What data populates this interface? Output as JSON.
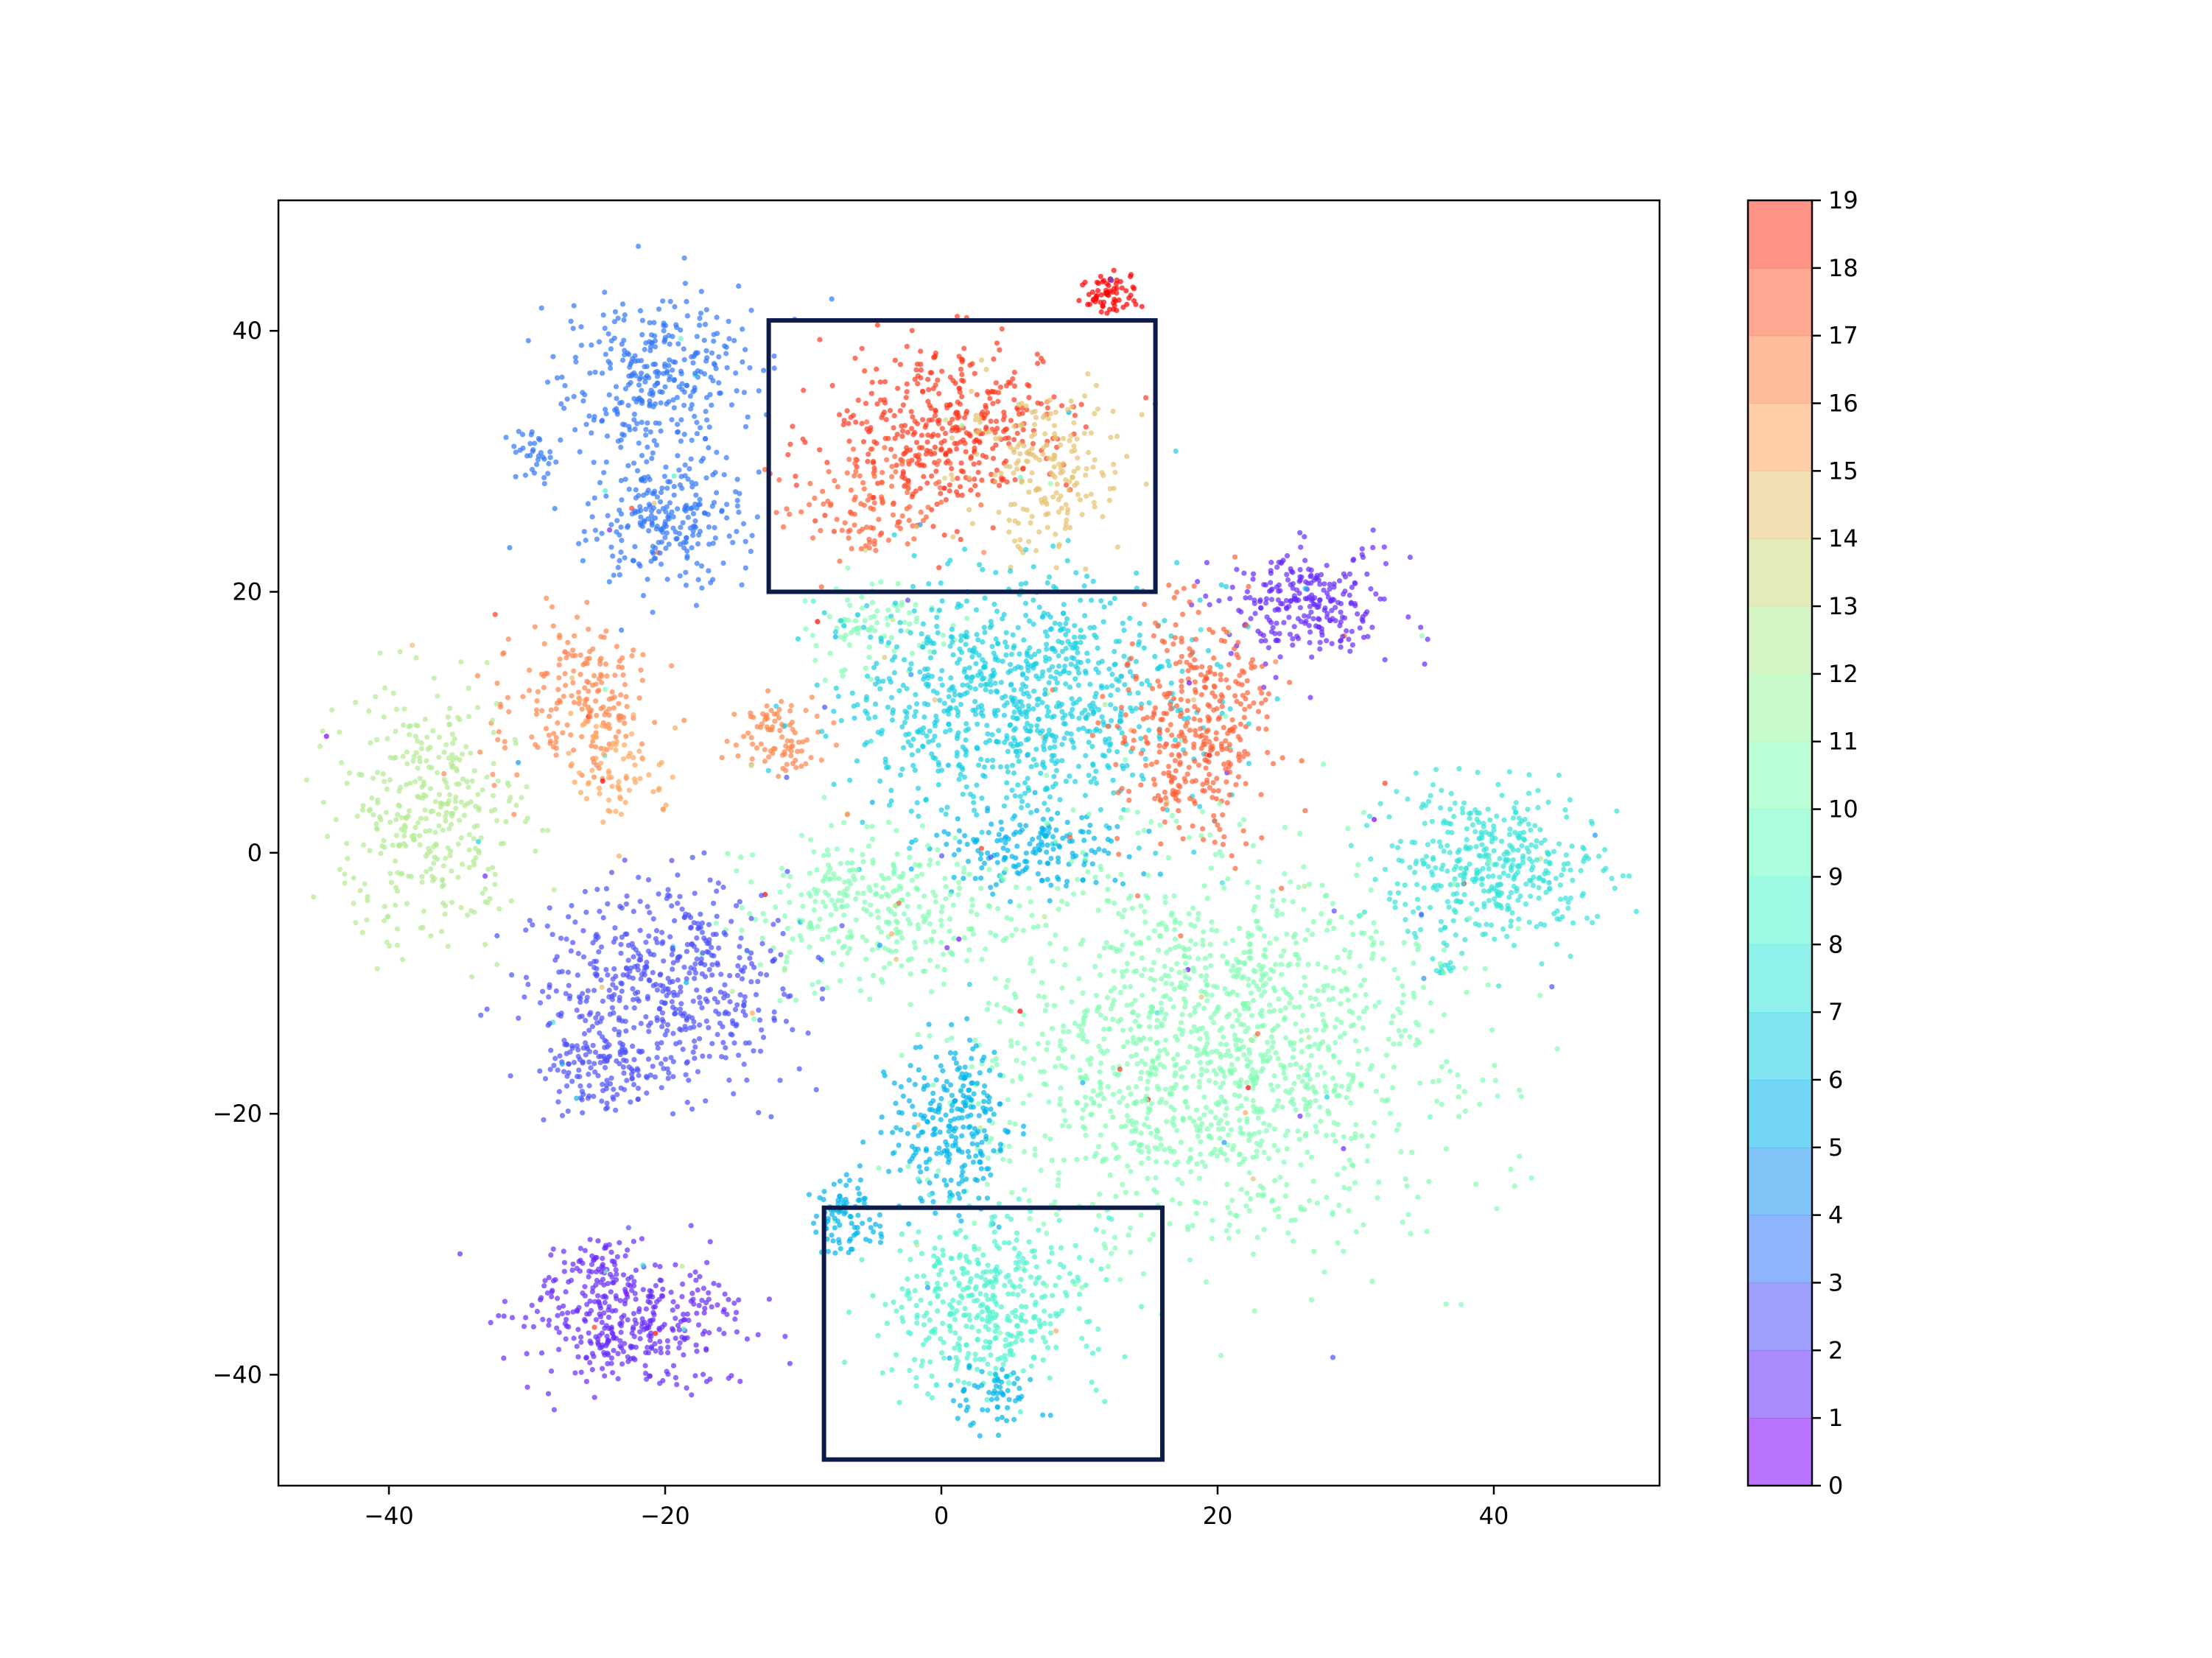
{
  "chart_data": {
    "type": "scatter",
    "title": "",
    "xlabel": "",
    "ylabel": "",
    "xlim": [
      -48,
      52
    ],
    "ylim": [
      -48.5,
      50
    ],
    "x_ticks": [
      -40,
      -20,
      0,
      20,
      40
    ],
    "x_tick_labels": [
      "−40",
      "−20",
      "0",
      "20",
      "40"
    ],
    "y_ticks": [
      -40,
      -20,
      0,
      20,
      40
    ],
    "y_tick_labels": [
      "−40",
      "−20",
      "0",
      "20",
      "40"
    ],
    "grid": false,
    "legend": "none",
    "colormap": "rainbow",
    "point_alpha": 0.7,
    "colorbar": {
      "min": 0,
      "max": 19,
      "ticks": [
        0,
        1,
        2,
        3,
        4,
        5,
        6,
        7,
        8,
        9,
        10,
        11,
        12,
        13,
        14,
        15,
        16,
        17,
        18,
        19
      ],
      "tick_labels": [
        "0",
        "1",
        "2",
        "3",
        "4",
        "5",
        "6",
        "7",
        "8",
        "9",
        "10",
        "11",
        "12",
        "13",
        "14",
        "15",
        "16",
        "17",
        "18",
        "19"
      ],
      "colors": [
        "#8000ff",
        "#6629fe",
        "#4c50fc",
        "#3176f8",
        "#1996f3",
        "#00b5eb",
        "#1acee3",
        "#34e4d9",
        "#4df3ce",
        "#67fcc1",
        "#81feb3",
        "#9af8a3",
        "#b3eb93",
        "#cdd982",
        "#e6c271",
        "#ffa65e",
        "#ff854b",
        "#ff6136",
        "#ff3a21",
        "#ff0000"
      ]
    },
    "clusters": [
      {
        "label": 19,
        "cx": 12.2,
        "cy": 43.0,
        "sx": 1.2,
        "sy": 0.9,
        "n": 70
      },
      {
        "label": 3,
        "cx": -20.5,
        "cy": 36.0,
        "sx": 3.3,
        "sy": 3.2,
        "n": 330
      },
      {
        "label": 3,
        "cx": -20.0,
        "cy": 25.5,
        "sx": 2.8,
        "sy": 2.5,
        "n": 240
      },
      {
        "label": 3,
        "cx": -29.5,
        "cy": 30.5,
        "sx": 0.9,
        "sy": 1.1,
        "n": 35
      },
      {
        "label": 18,
        "cx": 0.5,
        "cy": 32.5,
        "sx": 4.4,
        "sy": 3.3,
        "n": 420
      },
      {
        "label": 17,
        "cx": -5.5,
        "cy": 26.5,
        "sx": 3.2,
        "sy": 2.4,
        "n": 120
      },
      {
        "label": 14,
        "cx": 7.5,
        "cy": 29.5,
        "sx": 2.8,
        "sy": 3.0,
        "n": 200
      },
      {
        "label": 1,
        "cx": 26.5,
        "cy": 19.0,
        "sx": 3.0,
        "sy": 2.1,
        "n": 260
      },
      {
        "label": 16,
        "cx": -26.5,
        "cy": 11.5,
        "sx": 2.8,
        "sy": 3.2,
        "n": 200
      },
      {
        "label": 15,
        "cx": -23.5,
        "cy": 6.5,
        "sx": 1.8,
        "sy": 2.2,
        "n": 80
      },
      {
        "label": 12,
        "cx": -37.0,
        "cy": 3.0,
        "sx": 3.3,
        "sy": 5.0,
        "n": 360
      },
      {
        "label": 16,
        "cx": -11.5,
        "cy": 9.0,
        "sx": 1.6,
        "sy": 1.5,
        "n": 90
      },
      {
        "label": 10,
        "cx": -5.0,
        "cy": 17.0,
        "sx": 2.3,
        "sy": 1.6,
        "n": 90
      },
      {
        "label": 6,
        "cx": 5.5,
        "cy": 11.5,
        "sx": 6.0,
        "sy": 4.5,
        "n": 900
      },
      {
        "label": 5,
        "cx": 6.5,
        "cy": 0.5,
        "sx": 3.4,
        "sy": 1.6,
        "n": 170
      },
      {
        "label": 17,
        "cx": 18.5,
        "cy": 9.0,
        "sx": 2.7,
        "sy": 4.6,
        "n": 370
      },
      {
        "label": 7,
        "cx": 40.0,
        "cy": -1.0,
        "sx": 3.8,
        "sy": 3.0,
        "n": 420
      },
      {
        "label": 7,
        "cx": 36.5,
        "cy": -9.0,
        "sx": 0.6,
        "sy": 0.4,
        "n": 12
      },
      {
        "label": 10,
        "cx": -5.0,
        "cy": -4.5,
        "sx": 4.5,
        "sy": 2.9,
        "n": 330
      },
      {
        "label": 2,
        "cx": -20.0,
        "cy": -10.5,
        "sx": 4.6,
        "sy": 3.8,
        "n": 540
      },
      {
        "label": 2,
        "cx": -24.5,
        "cy": -17.0,
        "sx": 2.3,
        "sy": 1.7,
        "n": 110
      },
      {
        "label": 10,
        "cx": 19.5,
        "cy": -15.5,
        "sx": 8.0,
        "sy": 7.5,
        "n": 1450
      },
      {
        "label": 5,
        "cx": 0.5,
        "cy": -21.0,
        "sx": 2.2,
        "sy": 3.0,
        "n": 260
      },
      {
        "label": 5,
        "cx": -6.5,
        "cy": -28.0,
        "sx": 1.4,
        "sy": 1.5,
        "n": 90
      },
      {
        "label": 8,
        "cx": 3.5,
        "cy": -35.0,
        "sx": 3.5,
        "sy": 3.5,
        "n": 420
      },
      {
        "label": 5,
        "cx": 3.5,
        "cy": -41.5,
        "sx": 1.6,
        "sy": 1.2,
        "n": 60
      },
      {
        "label": 1,
        "cx": -22.0,
        "cy": -36.0,
        "sx": 3.8,
        "sy": 2.5,
        "n": 360
      },
      {
        "label": 1,
        "cx": -25.5,
        "cy": -32.5,
        "sx": 1.5,
        "sy": 1.4,
        "n": 60
      }
    ],
    "highlight_boxes": [
      {
        "x0": -12.5,
        "x1": 15.5,
        "y0": 20.0,
        "y1": 40.8
      },
      {
        "x0": -8.5,
        "x1": 16.0,
        "y0": -46.5,
        "y1": -27.2
      }
    ]
  }
}
